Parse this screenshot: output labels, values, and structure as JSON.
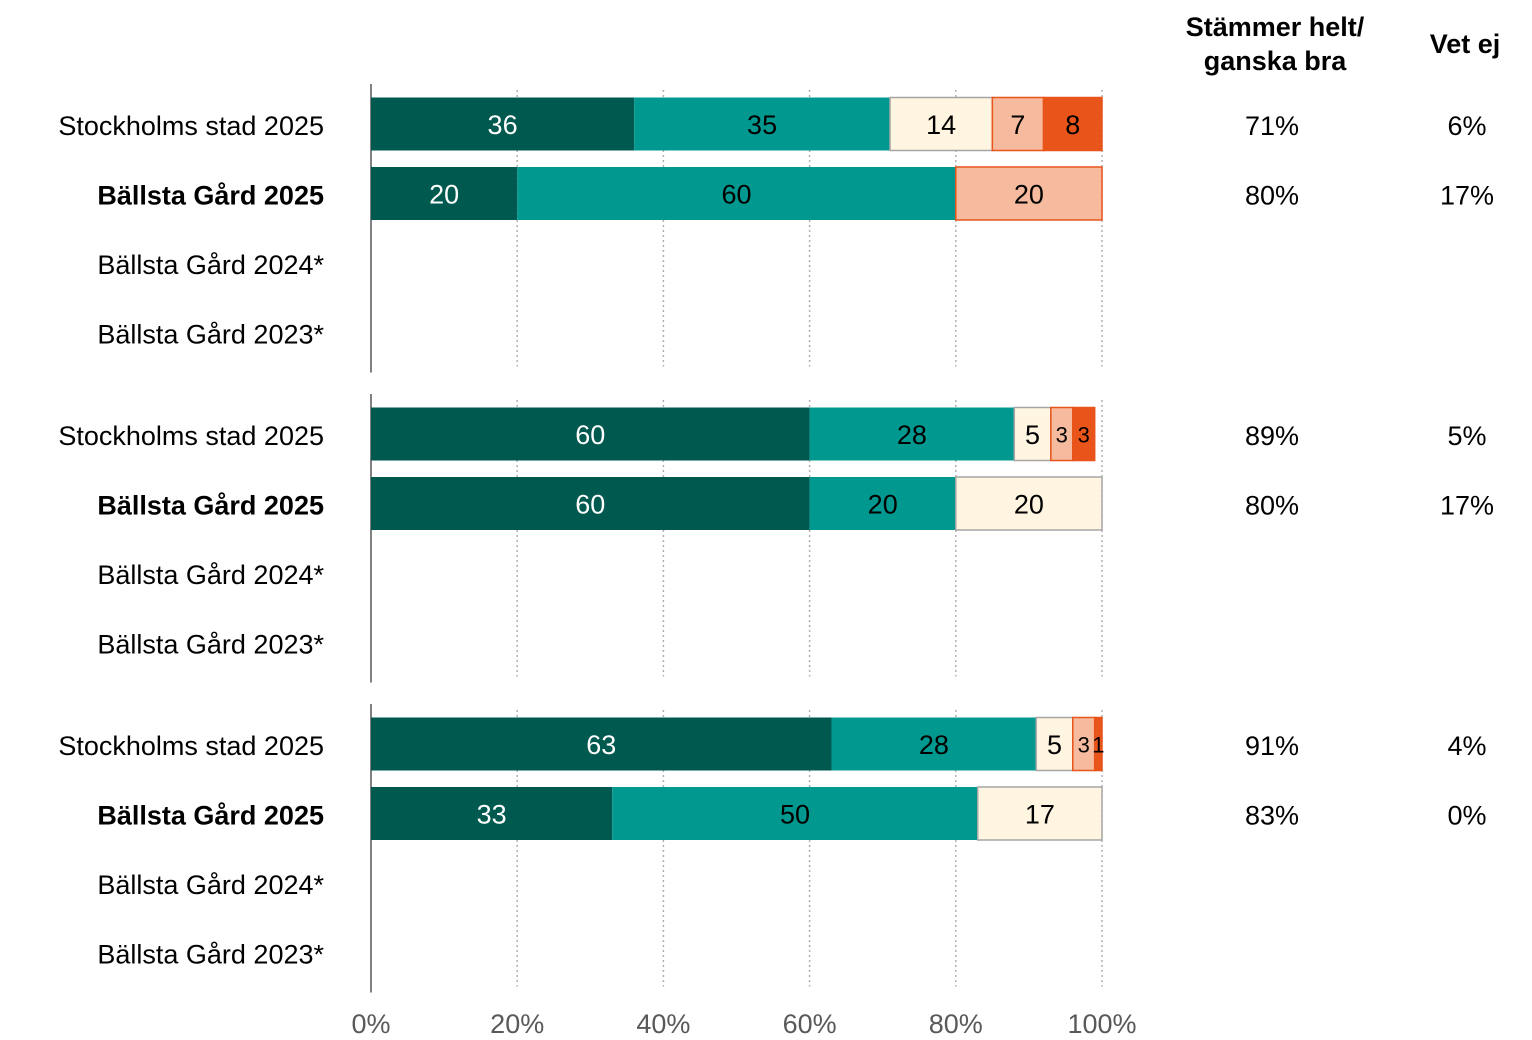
{
  "chart_data": {
    "type": "bar",
    "orientation": "horizontal",
    "stacked": true,
    "xlim": [
      0,
      100
    ],
    "x_ticks": [
      "0%",
      "20%",
      "40%",
      "60%",
      "80%",
      "100%"
    ],
    "grid": "vertical dotted",
    "column_headers": {
      "agree": "Stämmer helt/ ganska bra",
      "dont_know": "Vet ej"
    },
    "colors": [
      "#00594f",
      "#00988f",
      "#fff5e1",
      "#f6bb9e",
      "#e8541a"
    ],
    "groups": [
      {
        "rows": [
          {
            "label": "Stockholms stad 2025",
            "bold": false,
            "segments": [
              36,
              35,
              14,
              7,
              8
            ],
            "agree": "71%",
            "dont_know": "6%"
          },
          {
            "label": "Bällsta Gård 2025",
            "bold": true,
            "segments": [
              20,
              60,
              0,
              20,
              0
            ],
            "agree": "80%",
            "dont_know": "17%"
          },
          {
            "label": "Bällsta Gård 2024*",
            "bold": false,
            "segments": [],
            "agree": "",
            "dont_know": ""
          },
          {
            "label": "Bällsta Gård 2023*",
            "bold": false,
            "segments": [],
            "agree": "",
            "dont_know": ""
          }
        ]
      },
      {
        "rows": [
          {
            "label": "Stockholms stad 2025",
            "bold": false,
            "segments": [
              60,
              28,
              5,
              3,
              3
            ],
            "agree": "89%",
            "dont_know": "5%"
          },
          {
            "label": "Bällsta Gård 2025",
            "bold": true,
            "segments": [
              60,
              20,
              20,
              0,
              0
            ],
            "agree": "80%",
            "dont_know": "17%"
          },
          {
            "label": "Bällsta Gård 2024*",
            "bold": false,
            "segments": [],
            "agree": "",
            "dont_know": ""
          },
          {
            "label": "Bällsta Gård 2023*",
            "bold": false,
            "segments": [],
            "agree": "",
            "dont_know": ""
          }
        ]
      },
      {
        "rows": [
          {
            "label": "Stockholms stad 2025",
            "bold": false,
            "segments": [
              63,
              28,
              5,
              3,
              1
            ],
            "agree": "91%",
            "dont_know": "4%"
          },
          {
            "label": "Bällsta Gård 2025",
            "bold": true,
            "segments": [
              33,
              50,
              17,
              0,
              0
            ],
            "agree": "83%",
            "dont_know": "0%"
          },
          {
            "label": "Bällsta Gård 2024*",
            "bold": false,
            "segments": [],
            "agree": "",
            "dont_know": ""
          },
          {
            "label": "Bällsta Gård 2023*",
            "bold": false,
            "segments": [],
            "agree": "",
            "dont_know": ""
          }
        ]
      }
    ]
  }
}
